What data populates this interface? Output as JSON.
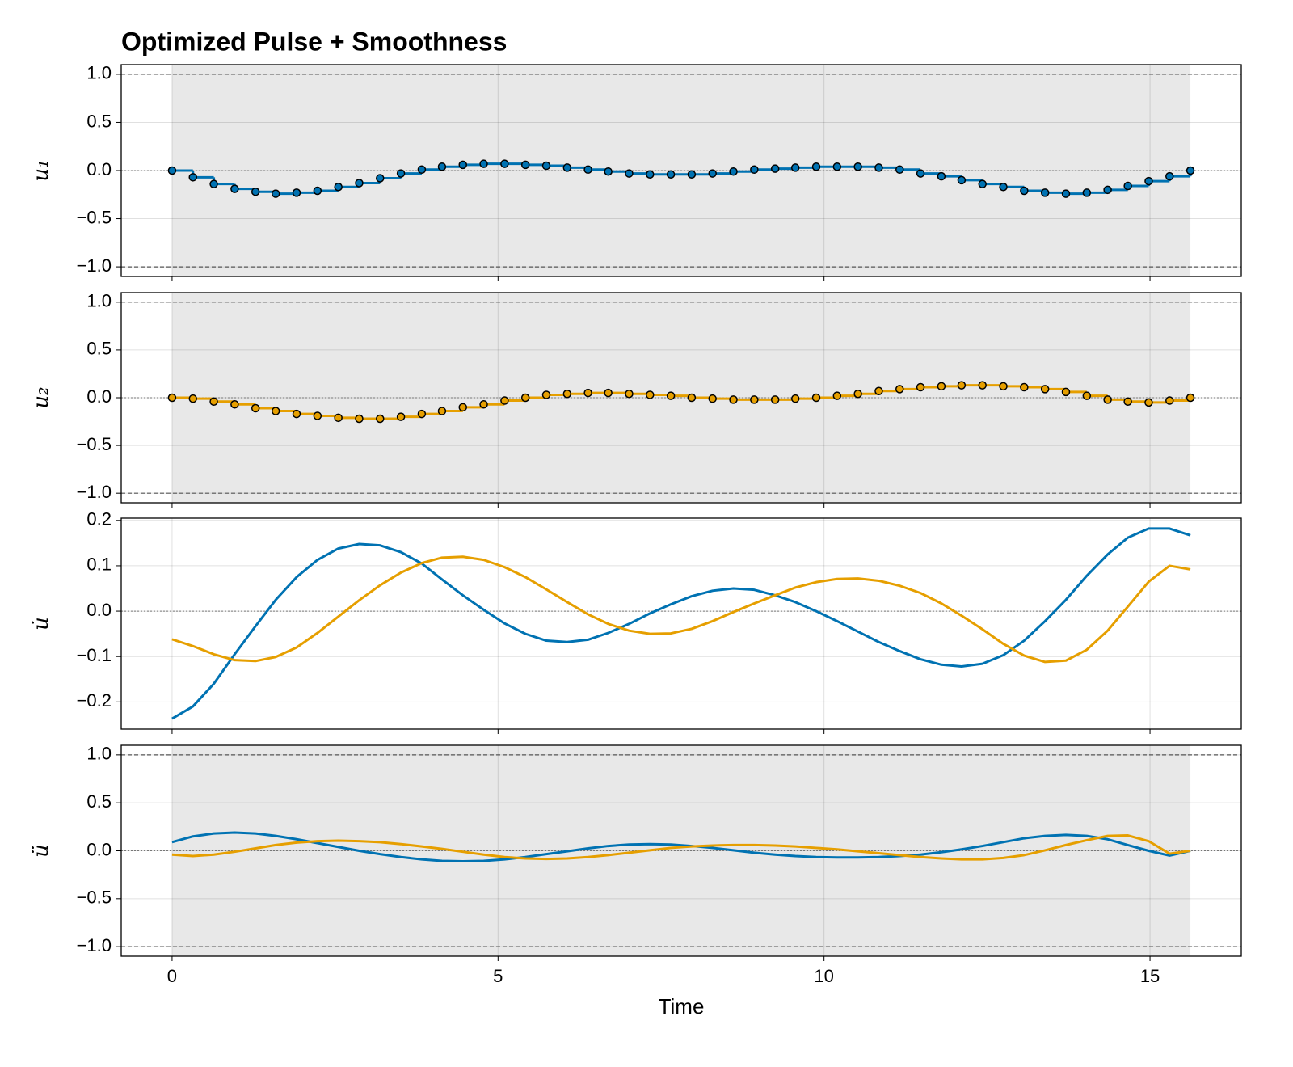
{
  "chart_data": [
    {
      "type": "step",
      "title": "Optimized Pulse + Smoothness",
      "ylabel": "u₁",
      "color": "#0072b2",
      "markers": true,
      "shaded": true,
      "grid": true,
      "x": [
        0,
        0.32,
        0.64,
        0.96,
        1.28,
        1.59,
        1.91,
        2.23,
        2.55,
        2.87,
        3.19,
        3.51,
        3.83,
        4.14,
        4.46,
        4.78,
        5.1,
        5.42,
        5.74,
        6.06,
        6.38,
        6.69,
        7.01,
        7.33,
        7.65,
        7.97,
        8.29,
        8.61,
        8.93,
        9.25,
        9.56,
        9.88,
        10.2,
        10.52,
        10.84,
        11.16,
        11.48,
        11.8,
        12.11,
        12.43,
        12.75,
        13.07,
        13.39,
        13.71,
        14.03,
        14.35,
        14.66,
        14.98,
        15.3,
        15.62
      ],
      "values": [
        0,
        -0.07,
        -0.14,
        -0.19,
        -0.22,
        -0.24,
        -0.23,
        -0.21,
        -0.17,
        -0.13,
        -0.08,
        -0.03,
        0.01,
        0.04,
        0.06,
        0.07,
        0.07,
        0.06,
        0.05,
        0.03,
        0.01,
        -0.01,
        -0.03,
        -0.04,
        -0.04,
        -0.04,
        -0.03,
        -0.01,
        0.01,
        0.02,
        0.03,
        0.04,
        0.04,
        0.04,
        0.03,
        0.01,
        -0.03,
        -0.06,
        -0.1,
        -0.14,
        -0.17,
        -0.21,
        -0.23,
        -0.24,
        -0.23,
        -0.2,
        -0.16,
        -0.11,
        -0.06,
        0
      ],
      "hlines": [
        -1,
        0,
        1
      ],
      "xlim": [
        -0.78,
        16.4
      ],
      "ylim": [
        -1.1,
        1.1
      ],
      "yticks": [
        {
          "value": -1,
          "label": "−1.0"
        },
        {
          "value": -0.5,
          "label": "−0.5"
        },
        {
          "value": 0,
          "label": "0.0"
        },
        {
          "value": 0.5,
          "label": "0.5"
        },
        {
          "value": 1,
          "label": "1.0"
        }
      ]
    },
    {
      "type": "step",
      "ylabel": "u₂",
      "color": "#e69f00",
      "markers": true,
      "shaded": true,
      "grid": true,
      "x": [
        0,
        0.32,
        0.64,
        0.96,
        1.28,
        1.59,
        1.91,
        2.23,
        2.55,
        2.87,
        3.19,
        3.51,
        3.83,
        4.14,
        4.46,
        4.78,
        5.1,
        5.42,
        5.74,
        6.06,
        6.38,
        6.69,
        7.01,
        7.33,
        7.65,
        7.97,
        8.29,
        8.61,
        8.93,
        9.25,
        9.56,
        9.88,
        10.2,
        10.52,
        10.84,
        11.16,
        11.48,
        11.8,
        12.11,
        12.43,
        12.75,
        13.07,
        13.39,
        13.71,
        14.03,
        14.35,
        14.66,
        14.98,
        15.3,
        15.62
      ],
      "values": [
        0,
        -0.01,
        -0.04,
        -0.07,
        -0.11,
        -0.14,
        -0.17,
        -0.19,
        -0.21,
        -0.22,
        -0.22,
        -0.2,
        -0.17,
        -0.14,
        -0.1,
        -0.07,
        -0.03,
        0,
        0.03,
        0.04,
        0.05,
        0.05,
        0.04,
        0.03,
        0.02,
        0,
        -0.01,
        -0.02,
        -0.02,
        -0.02,
        -0.01,
        0,
        0.02,
        0.04,
        0.07,
        0.09,
        0.11,
        0.12,
        0.13,
        0.13,
        0.12,
        0.11,
        0.09,
        0.06,
        0.02,
        -0.02,
        -0.04,
        -0.05,
        -0.03,
        0
      ],
      "hlines": [
        -1,
        0,
        1
      ],
      "xlim": [
        -0.78,
        16.4
      ],
      "ylim": [
        -1.1,
        1.1
      ],
      "yticks": [
        {
          "value": -1,
          "label": "−1.0"
        },
        {
          "value": -0.5,
          "label": "−0.5"
        },
        {
          "value": 0,
          "label": "0.0"
        },
        {
          "value": 0.5,
          "label": "0.5"
        },
        {
          "value": 1,
          "label": "1.0"
        }
      ]
    },
    {
      "type": "line",
      "ylabel": "u̇",
      "shaded": false,
      "grid": true,
      "x": [
        0,
        0.32,
        0.64,
        0.96,
        1.28,
        1.59,
        1.91,
        2.23,
        2.55,
        2.87,
        3.19,
        3.51,
        3.83,
        4.14,
        4.46,
        4.78,
        5.1,
        5.42,
        5.74,
        6.06,
        6.38,
        6.69,
        7.01,
        7.33,
        7.65,
        7.97,
        8.29,
        8.61,
        8.93,
        9.25,
        9.56,
        9.88,
        10.2,
        10.52,
        10.84,
        11.16,
        11.48,
        11.8,
        12.11,
        12.43,
        12.75,
        13.07,
        13.39,
        13.71,
        14.03,
        14.35,
        14.66,
        14.98,
        15.3,
        15.62
      ],
      "series": [
        {
          "color": "#0072b2",
          "values": [
            -0.237,
            -0.21,
            -0.16,
            -0.095,
            -0.033,
            0.025,
            0.075,
            0.113,
            0.138,
            0.148,
            0.145,
            0.13,
            0.105,
            0.07,
            0.035,
            0.003,
            -0.027,
            -0.05,
            -0.065,
            -0.068,
            -0.063,
            -0.048,
            -0.028,
            -0.005,
            0.015,
            0.033,
            0.045,
            0.05,
            0.047,
            0.035,
            0.02,
            0,
            -0.022,
            -0.045,
            -0.068,
            -0.088,
            -0.106,
            -0.118,
            -0.122,
            -0.116,
            -0.097,
            -0.065,
            -0.022,
            0.025,
            0.078,
            0.125,
            0.162,
            0.182,
            0.182,
            0.167
          ]
        },
        {
          "color": "#e69f00",
          "values": [
            -0.062,
            -0.077,
            -0.095,
            -0.108,
            -0.11,
            -0.101,
            -0.08,
            -0.048,
            -0.012,
            0.024,
            0.057,
            0.085,
            0.106,
            0.118,
            0.12,
            0.113,
            0.097,
            0.075,
            0.048,
            0.02,
            -0.007,
            -0.028,
            -0.043,
            -0.05,
            -0.049,
            -0.039,
            -0.022,
            -0.002,
            0.017,
            0.035,
            0.052,
            0.064,
            0.071,
            0.072,
            0.067,
            0.056,
            0.04,
            0.017,
            -0.01,
            -0.04,
            -0.072,
            -0.098,
            -0.112,
            -0.109,
            -0.085,
            -0.043,
            0.01,
            0.065,
            0.1,
            0.092
          ]
        }
      ],
      "hlines": [
        0
      ],
      "xlim": [
        -0.78,
        16.4
      ],
      "ylim": [
        -0.26,
        0.205
      ],
      "yticks": [
        {
          "value": -0.2,
          "label": "−0.2"
        },
        {
          "value": -0.1,
          "label": "−0.1"
        },
        {
          "value": 0,
          "label": "0.0"
        },
        0.1,
        0.2
      ]
    },
    {
      "type": "line",
      "ylabel": "ü",
      "xlabel": "Time",
      "shaded": true,
      "grid": true,
      "x": [
        0,
        0.32,
        0.64,
        0.96,
        1.28,
        1.59,
        1.91,
        2.23,
        2.55,
        2.87,
        3.19,
        3.51,
        3.83,
        4.14,
        4.46,
        4.78,
        5.1,
        5.42,
        5.74,
        6.06,
        6.38,
        6.69,
        7.01,
        7.33,
        7.65,
        7.97,
        8.29,
        8.61,
        8.93,
        9.25,
        9.56,
        9.88,
        10.2,
        10.52,
        10.84,
        11.16,
        11.48,
        11.8,
        12.11,
        12.43,
        12.75,
        13.07,
        13.39,
        13.71,
        14.03,
        14.35,
        14.66,
        14.98,
        15.3,
        15.62
      ],
      "series": [
        {
          "color": "#0072b2",
          "values": [
            0.09,
            0.15,
            0.18,
            0.19,
            0.18,
            0.155,
            0.12,
            0.08,
            0.04,
            0,
            -0.035,
            -0.065,
            -0.09,
            -0.105,
            -0.11,
            -0.105,
            -0.09,
            -0.065,
            -0.035,
            -0.005,
            0.025,
            0.05,
            0.065,
            0.07,
            0.065,
            0.05,
            0.03,
            0.005,
            -0.02,
            -0.04,
            -0.055,
            -0.065,
            -0.07,
            -0.07,
            -0.065,
            -0.055,
            -0.04,
            -0.015,
            0.015,
            0.05,
            0.09,
            0.13,
            0.155,
            0.165,
            0.155,
            0.12,
            0.06,
            0,
            -0.05,
            0
          ]
        },
        {
          "color": "#e69f00",
          "values": [
            -0.04,
            -0.055,
            -0.04,
            -0.01,
            0.025,
            0.06,
            0.085,
            0.1,
            0.105,
            0.1,
            0.09,
            0.07,
            0.045,
            0.02,
            -0.01,
            -0.04,
            -0.065,
            -0.08,
            -0.085,
            -0.08,
            -0.065,
            -0.045,
            -0.02,
            0.005,
            0.03,
            0.045,
            0.055,
            0.06,
            0.06,
            0.055,
            0.045,
            0.03,
            0.015,
            -0.005,
            -0.025,
            -0.045,
            -0.065,
            -0.08,
            -0.09,
            -0.09,
            -0.075,
            -0.045,
            0.005,
            0.06,
            0.11,
            0.155,
            0.16,
            0.1,
            -0.03,
            0
          ]
        }
      ],
      "hlines": [
        -1,
        0,
        1
      ],
      "xlim": [
        -0.78,
        16.4
      ],
      "ylim": [
        -1.1,
        1.1
      ],
      "xticks": [
        0,
        5,
        10,
        15
      ],
      "yticks": [
        {
          "value": -1,
          "label": "−1.0"
        },
        {
          "value": -0.5,
          "label": "−0.5"
        },
        {
          "value": 0,
          "label": "0.0"
        },
        {
          "value": 0.5,
          "label": "0.5"
        },
        {
          "value": 1,
          "label": "1.0"
        }
      ]
    }
  ]
}
